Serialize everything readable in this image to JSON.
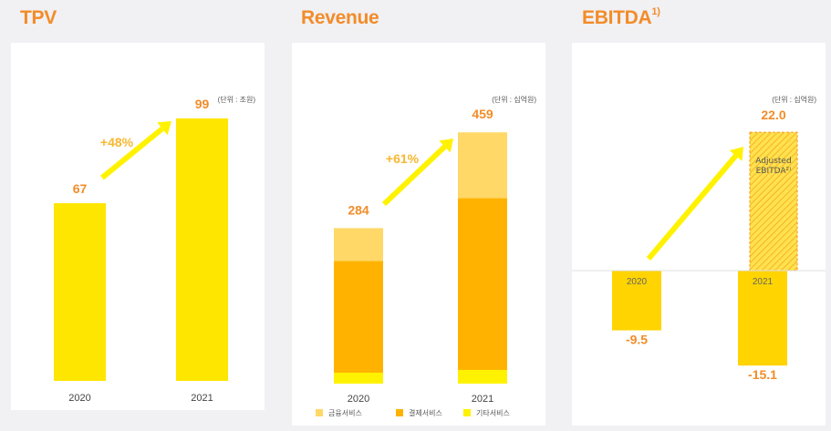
{
  "colors": {
    "title": "#f28c28",
    "bar_yellow": "#ffe600",
    "finance": "#ffd867",
    "payment": "#ffb300",
    "other": "#fff200",
    "growth": "#f7b731",
    "arrow": "#fff200",
    "ebitda_bar": "#ffd400",
    "adjusted": "#f5a623"
  },
  "tpv": {
    "title": "TPV",
    "unit_label": "(단위 : 조원)"
  },
  "revenue": {
    "title": "Revenue",
    "unit_label": "(단위 : 십억원)",
    "legend": [
      "금융서비스",
      "결제서비스",
      "기타서비스"
    ]
  },
  "ebitda": {
    "title": "EBITDA",
    "footnote": "1)",
    "unit_label": "(단위 : 십억원)",
    "adjusted_label_line1": "Adjusted",
    "adjusted_label_line2": "EBITDA²⁾"
  },
  "chart_data": [
    {
      "type": "bar",
      "title": "TPV",
      "unit": "조원",
      "categories": [
        "2020",
        "2021"
      ],
      "values": [
        67,
        99
      ],
      "growth_label": "+48%",
      "ylim": [
        0,
        100
      ]
    },
    {
      "type": "bar",
      "stacked": true,
      "title": "Revenue",
      "unit": "십억원",
      "categories": [
        "2020",
        "2021"
      ],
      "series": [
        {
          "name": "기타서비스",
          "values": [
            20,
            25
          ]
        },
        {
          "name": "결제서비스",
          "values": [
            204,
            314
          ]
        },
        {
          "name": "금융서비스",
          "values": [
            60,
            120
          ]
        }
      ],
      "totals": [
        284,
        459
      ],
      "growth_label": "+61%",
      "ylim": [
        0,
        500
      ]
    },
    {
      "type": "bar",
      "title": "EBITDA",
      "unit": "십억원",
      "categories": [
        "2020",
        "2021"
      ],
      "values": [
        -9.5,
        -15.1
      ],
      "value_labels": [
        "-9.5",
        "-15.1"
      ],
      "adjusted_2021": 22.0,
      "adjusted_label": "22.0",
      "ylim": [
        -20,
        30
      ]
    }
  ]
}
